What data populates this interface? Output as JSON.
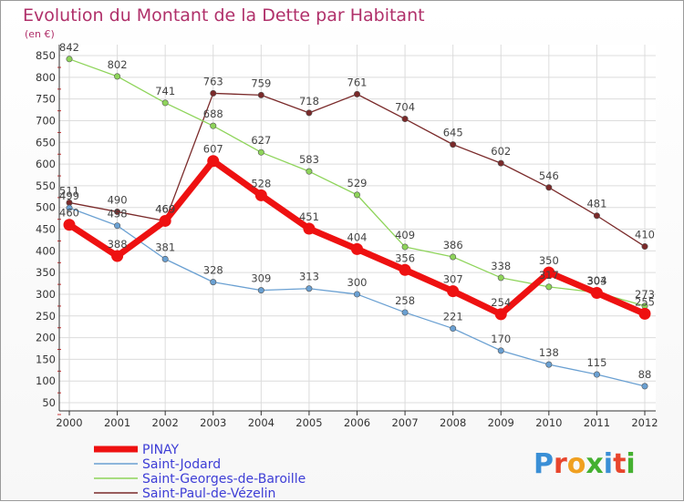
{
  "chart_data": {
    "type": "line",
    "title": "Evolution du Montant de la Dette par Habitant",
    "subtitle": "(en €)",
    "categories": [
      "2000",
      "2001",
      "2002",
      "2003",
      "2004",
      "2005",
      "2006",
      "2007",
      "2008",
      "2009",
      "2010",
      "2011",
      "2012"
    ],
    "ylim": [
      50,
      850
    ],
    "yticks": [
      50,
      100,
      150,
      200,
      250,
      300,
      350,
      400,
      450,
      500,
      550,
      600,
      650,
      700,
      750,
      800,
      850
    ],
    "grid": true,
    "legend_position": "bottom-left",
    "series": [
      {
        "name": "PINAY",
        "color": "#ee1111",
        "values": [
          460,
          388,
          469,
          607,
          528,
          451,
          404,
          356,
          307,
          254,
          350,
          303,
          255
        ]
      },
      {
        "name": "Saint-Jodard",
        "color": "#6aa0d2",
        "values": [
          499,
          458,
          381,
          328,
          309,
          313,
          300,
          258,
          221,
          170,
          138,
          115,
          88
        ]
      },
      {
        "name": "Saint-Georges-de-Baroille",
        "color": "#8ed45a",
        "values": [
          842,
          802,
          741,
          688,
          627,
          583,
          529,
          409,
          386,
          338,
          317,
          304,
          273
        ]
      },
      {
        "name": "Saint-Paul-de-Vézelin",
        "color": "#7a2a2a",
        "values": [
          511,
          490,
          469,
          763,
          759,
          718,
          761,
          704,
          645,
          602,
          546,
          481,
          410
        ]
      }
    ]
  },
  "logo": {
    "text": "Proxiti"
  }
}
